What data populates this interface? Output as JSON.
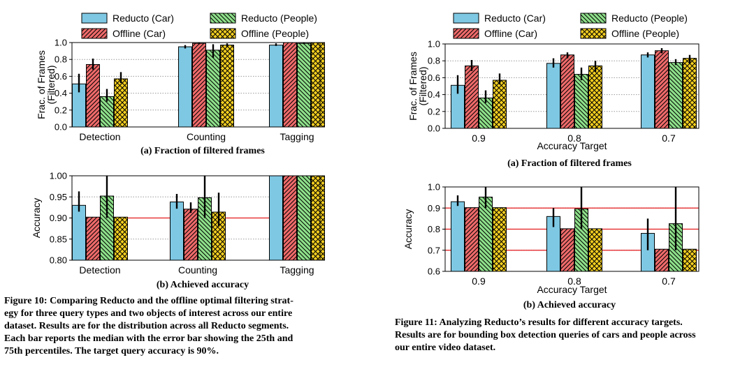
{
  "legend": [
    {
      "label": "Reducto (Car)",
      "color": "#7ec8e3",
      "pattern": "none"
    },
    {
      "label": "Reducto (People)",
      "color": "#8ee08a",
      "pattern": "back"
    },
    {
      "label": "Offline (Car)",
      "color": "#ef6a6a",
      "pattern": "fwd"
    },
    {
      "label": "Offline (People)",
      "color": "#f5d020",
      "pattern": "cross"
    }
  ],
  "colors": {
    "redline": "#e41a1c",
    "grid": "#999999"
  },
  "fig10": {
    "sub_a": "(a) Fraction of filtered frames",
    "sub_b": "(b) Achieved accuracy",
    "caption": [
      "Figure 10: Comparing Reducto and the offline optimal filtering strat-",
      "egy for three query types and two objects of interest across our entire",
      "dataset. Results are for the distribution across all Reducto segments.",
      "Each bar reports the median with the error bar showing the 25th and",
      "75th percentiles. The target query accuracy is 90%."
    ]
  },
  "fig11": {
    "sub_a": "(a) Fraction of filtered frames",
    "sub_b": "(b) Achieved accuracy",
    "caption": [
      "Figure 11: Analyzing Reducto’s results for different accuracy targets.",
      "Results are for bounding box detection queries of cars and people across",
      "our entire video dataset."
    ]
  },
  "chart_data": [
    {
      "type": "bar",
      "id": "fig10a",
      "ylabel": "Frac. of Frames\n(Filtered)",
      "xlabel": "",
      "ylim": [
        0,
        1.0
      ],
      "yticks": [
        "0.0",
        "0.2",
        "0.4",
        "0.6",
        "0.8",
        "1.0"
      ],
      "categories": [
        "Detection",
        "Counting",
        "Tagging"
      ],
      "series": [
        {
          "name": "Reducto (Car)",
          "values": [
            0.51,
            0.95,
            0.97
          ],
          "err": [
            [
              0.41,
              0.63
            ],
            [
              0.93,
              0.97
            ],
            [
              0.96,
              0.99
            ]
          ]
        },
        {
          "name": "Offline (Car)",
          "values": [
            0.74,
            0.99,
            1.0
          ],
          "err": [
            [
              0.68,
              0.81
            ],
            [
              0.98,
              1.0
            ],
            [
              1.0,
              1.0
            ]
          ]
        },
        {
          "name": "Reducto (People)",
          "values": [
            0.36,
            0.91,
            0.99
          ],
          "err": [
            [
              0.3,
              0.45
            ],
            [
              0.82,
              0.98
            ],
            [
              0.98,
              1.0
            ]
          ]
        },
        {
          "name": "Offline (People)",
          "values": [
            0.57,
            0.97,
            1.0
          ],
          "err": [
            [
              0.52,
              0.65
            ],
            [
              0.95,
              0.99
            ],
            [
              1.0,
              1.0
            ]
          ]
        }
      ]
    },
    {
      "type": "bar",
      "id": "fig10b",
      "ylabel": "Accuracy",
      "xlabel": "",
      "target": 0.9,
      "ylim": [
        0.8,
        1.0
      ],
      "yticks": [
        "0.80",
        "0.85",
        "0.90",
        "0.95",
        "1.00"
      ],
      "categories": [
        "Detection",
        "Counting",
        "Tagging"
      ],
      "series": [
        {
          "name": "Reducto (Car)",
          "values": [
            0.93,
            0.938,
            1.0
          ],
          "err": [
            [
              0.915,
              0.963
            ],
            [
              0.922,
              0.957
            ],
            [
              1.0,
              1.0
            ]
          ]
        },
        {
          "name": "Offline (Car)",
          "values": [
            0.902,
            0.921,
            1.0
          ],
          "err": [
            [
              0.902,
              0.902
            ],
            [
              0.912,
              0.937
            ],
            [
              1.0,
              1.0
            ]
          ]
        },
        {
          "name": "Reducto (People)",
          "values": [
            0.952,
            0.948,
            1.0
          ],
          "err": [
            [
              0.9,
              1.0
            ],
            [
              0.9,
              1.0
            ],
            [
              1.0,
              1.0
            ]
          ]
        },
        {
          "name": "Offline (People)",
          "values": [
            0.902,
            0.914,
            1.0
          ],
          "err": [
            [
              0.902,
              0.902
            ],
            [
              0.88,
              0.96
            ],
            [
              1.0,
              1.0
            ]
          ]
        }
      ]
    },
    {
      "type": "bar",
      "id": "fig11a",
      "ylabel": "Frac. of Frames\n(Filtered)",
      "xlabel": "Accuracy Target",
      "ylim": [
        0,
        1.0
      ],
      "yticks": [
        "0.0",
        "0.2",
        "0.4",
        "0.6",
        "0.8",
        "1.0"
      ],
      "categories": [
        "0.9",
        "0.8",
        "0.7"
      ],
      "series": [
        {
          "name": "Reducto (Car)",
          "values": [
            0.51,
            0.77,
            0.87
          ],
          "err": [
            [
              0.41,
              0.63
            ],
            [
              0.72,
              0.83
            ],
            [
              0.84,
              0.9
            ]
          ]
        },
        {
          "name": "Offline (Car)",
          "values": [
            0.74,
            0.87,
            0.92
          ],
          "err": [
            [
              0.68,
              0.81
            ],
            [
              0.83,
              0.9
            ],
            [
              0.89,
              0.95
            ]
          ]
        },
        {
          "name": "Reducto (People)",
          "values": [
            0.36,
            0.64,
            0.78
          ],
          "err": [
            [
              0.3,
              0.45
            ],
            [
              0.57,
              0.72
            ],
            [
              0.75,
              0.82
            ]
          ]
        },
        {
          "name": "Offline (People)",
          "values": [
            0.57,
            0.74,
            0.83
          ],
          "err": [
            [
              0.52,
              0.65
            ],
            [
              0.67,
              0.8
            ],
            [
              0.77,
              0.87
            ]
          ]
        }
      ]
    },
    {
      "type": "bar",
      "id": "fig11b",
      "ylabel": "Accuracy",
      "xlabel": "Accuracy Target",
      "targets": [
        0.9,
        0.8,
        0.7
      ],
      "ylim": [
        0.6,
        1.0
      ],
      "yticks": [
        "0.6",
        "0.7",
        "0.8",
        "0.9",
        "1.0"
      ],
      "categories": [
        "0.9",
        "0.8",
        "0.7"
      ],
      "series": [
        {
          "name": "Reducto (Car)",
          "values": [
            0.93,
            0.86,
            0.78
          ],
          "err": [
            [
              0.91,
              0.96
            ],
            [
              0.81,
              0.9
            ],
            [
              0.7,
              0.85
            ]
          ]
        },
        {
          "name": "Offline (Car)",
          "values": [
            0.902,
            0.802,
            0.705
          ],
          "err": [
            [
              0.902,
              0.902
            ],
            [
              0.802,
              0.802
            ],
            [
              0.705,
              0.705
            ]
          ]
        },
        {
          "name": "Reducto (People)",
          "values": [
            0.952,
            0.896,
            0.826
          ],
          "err": [
            [
              0.9,
              1.0
            ],
            [
              0.8,
              1.0
            ],
            [
              0.7,
              1.0
            ]
          ]
        },
        {
          "name": "Offline (People)",
          "values": [
            0.902,
            0.802,
            0.705
          ],
          "err": [
            [
              0.902,
              0.902
            ],
            [
              0.802,
              0.802
            ],
            [
              0.705,
              0.705
            ]
          ]
        }
      ]
    }
  ]
}
